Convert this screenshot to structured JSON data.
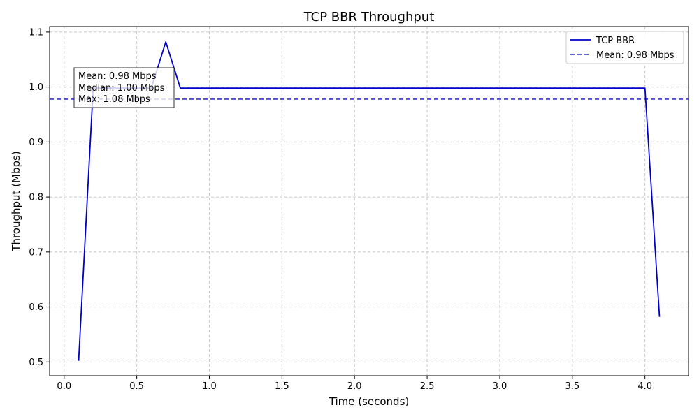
{
  "chart_data": {
    "type": "line",
    "title": "TCP BBR Throughput",
    "xlabel": "Time (seconds)",
    "ylabel": "Throughput (Mbps)",
    "xlim": [
      -0.1,
      4.3
    ],
    "ylim": [
      0.475,
      1.11
    ],
    "xticks": [
      0.0,
      0.5,
      1.0,
      1.5,
      2.0,
      2.5,
      3.0,
      3.5,
      4.0
    ],
    "xtick_labels": [
      "0.0",
      "0.5",
      "1.0",
      "1.5",
      "2.0",
      "2.5",
      "3.0",
      "3.5",
      "4.0"
    ],
    "yticks": [
      0.5,
      0.6,
      0.7,
      0.8,
      0.9,
      1.0,
      1.1
    ],
    "ytick_labels": [
      "0.5",
      "0.6",
      "0.7",
      "0.8",
      "0.9",
      "1.0",
      "1.1"
    ],
    "grid": true,
    "legend_position": "top-right",
    "series": [
      {
        "name": "TCP BBR",
        "color": "#0000cc",
        "style": "solid",
        "x": [
          0.1,
          0.2,
          0.3,
          0.4,
          0.5,
          0.6,
          0.7,
          0.8,
          0.9,
          1.0,
          1.5,
          2.0,
          2.5,
          3.0,
          3.5,
          4.0,
          4.1
        ],
        "y": [
          0.502,
          0.998,
          0.998,
          0.998,
          0.998,
          0.998,
          1.082,
          0.998,
          0.998,
          0.998,
          0.998,
          0.998,
          0.998,
          0.998,
          0.998,
          0.998,
          0.582
        ]
      }
    ],
    "mean_line": {
      "name": "Mean: 0.98 Mbps",
      "value": 0.978,
      "color": "#3333cc",
      "style": "dashed"
    },
    "stats_box": {
      "lines": [
        "Mean: 0.98 Mbps",
        "Median: 1.00 Mbps",
        "Max: 1.08 Mbps"
      ],
      "position": "top-left"
    }
  }
}
